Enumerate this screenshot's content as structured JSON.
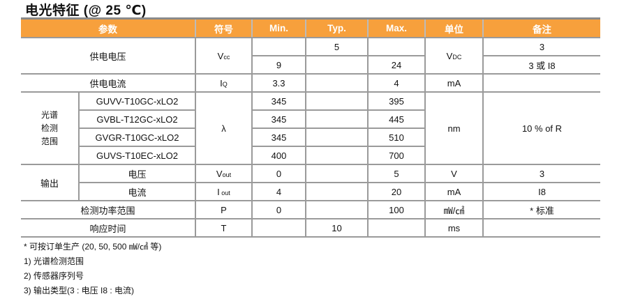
{
  "title": "电光特征 (@ 25 ℃)",
  "headers": [
    "参数",
    "符号",
    "Min.",
    "Typ.",
    "Max.",
    "单位",
    "备注"
  ],
  "rows": {
    "supply_voltage": {
      "param": "供电电压",
      "symbol": "V",
      "symbol_sub": "cc",
      "typ": "5",
      "min": "9",
      "max": "24",
      "unit": "V",
      "unit_sub": "DC",
      "remark1": "3",
      "remark2": "3 或 I8"
    },
    "supply_current": {
      "param": "供电电流",
      "symbol": "I",
      "symbol_sub": "Q",
      "min": "3.3",
      "max": "4",
      "unit": "mA"
    },
    "spectral": {
      "param": "光谱检测范围",
      "param_lines": [
        "光谱",
        "检测",
        "范围"
      ],
      "symbol": "λ",
      "unit": "nm",
      "remark": "10 % of R",
      "items": [
        {
          "model": "GUVV-T10GC-xLO2",
          "min": "345",
          "max": "395"
        },
        {
          "model": "GVBL-T12GC-xLO2",
          "min": "345",
          "max": "445"
        },
        {
          "model": "GVGR-T10GC-xLO2",
          "min": "345",
          "max": "510"
        },
        {
          "model": "GUVS-T10EC-xLO2",
          "min": "400",
          "max": "700"
        }
      ]
    },
    "output": {
      "param": "输出",
      "voltage": {
        "label": "电压",
        "symbol": "V",
        "symbol_sub": "out",
        "min": "0",
        "max": "5",
        "unit": "V",
        "remark": "3"
      },
      "current": {
        "label": "电流",
        "symbol": "I",
        "symbol_sub": " out",
        "min": "4",
        "max": "20",
        "unit": "mA",
        "remark": "I8"
      }
    },
    "power_range": {
      "param": "检测功率范围",
      "symbol": "P",
      "min": "0",
      "max": "100",
      "unit": "㎽/㎠",
      "remark": "* 标准"
    },
    "response": {
      "param": "响应时间",
      "symbol": "T",
      "typ": "10",
      "unit": "ms"
    }
  },
  "notes": [
    "* 可按订单生产 (20, 50, 500 ㎽/㎠ 等)",
    "1) 光谱检测范围",
    "2) 传感器序列号",
    "3) 输出类型(3 : 电压 I8 : 电流)"
  ],
  "colors": {
    "header_bg": "#f7a03c",
    "grid": "#9a9a9a"
  }
}
